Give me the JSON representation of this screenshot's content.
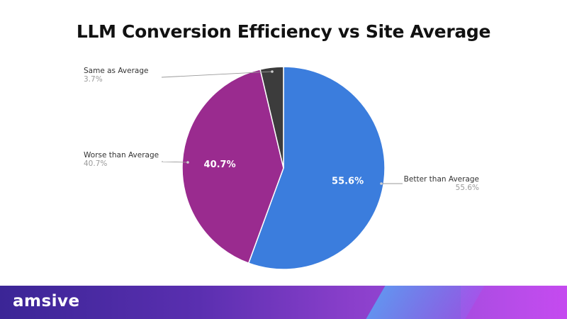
{
  "chart_data": {
    "type": "pie",
    "title": "LLM Conversion Efficiency vs Site Average",
    "categories": [
      "Better than Average",
      "Worse than Average",
      "Same as Average"
    ],
    "values": [
      55.6,
      40.7,
      3.7
    ],
    "value_labels": [
      "55.6%",
      "40.7%",
      "3.7%"
    ],
    "colors": [
      "#3b7ddd",
      "#9a2b8f",
      "#3c3c3c"
    ],
    "start_angle_deg": 0,
    "direction": "clockwise"
  },
  "footer": {
    "logo_text": "amsive"
  }
}
